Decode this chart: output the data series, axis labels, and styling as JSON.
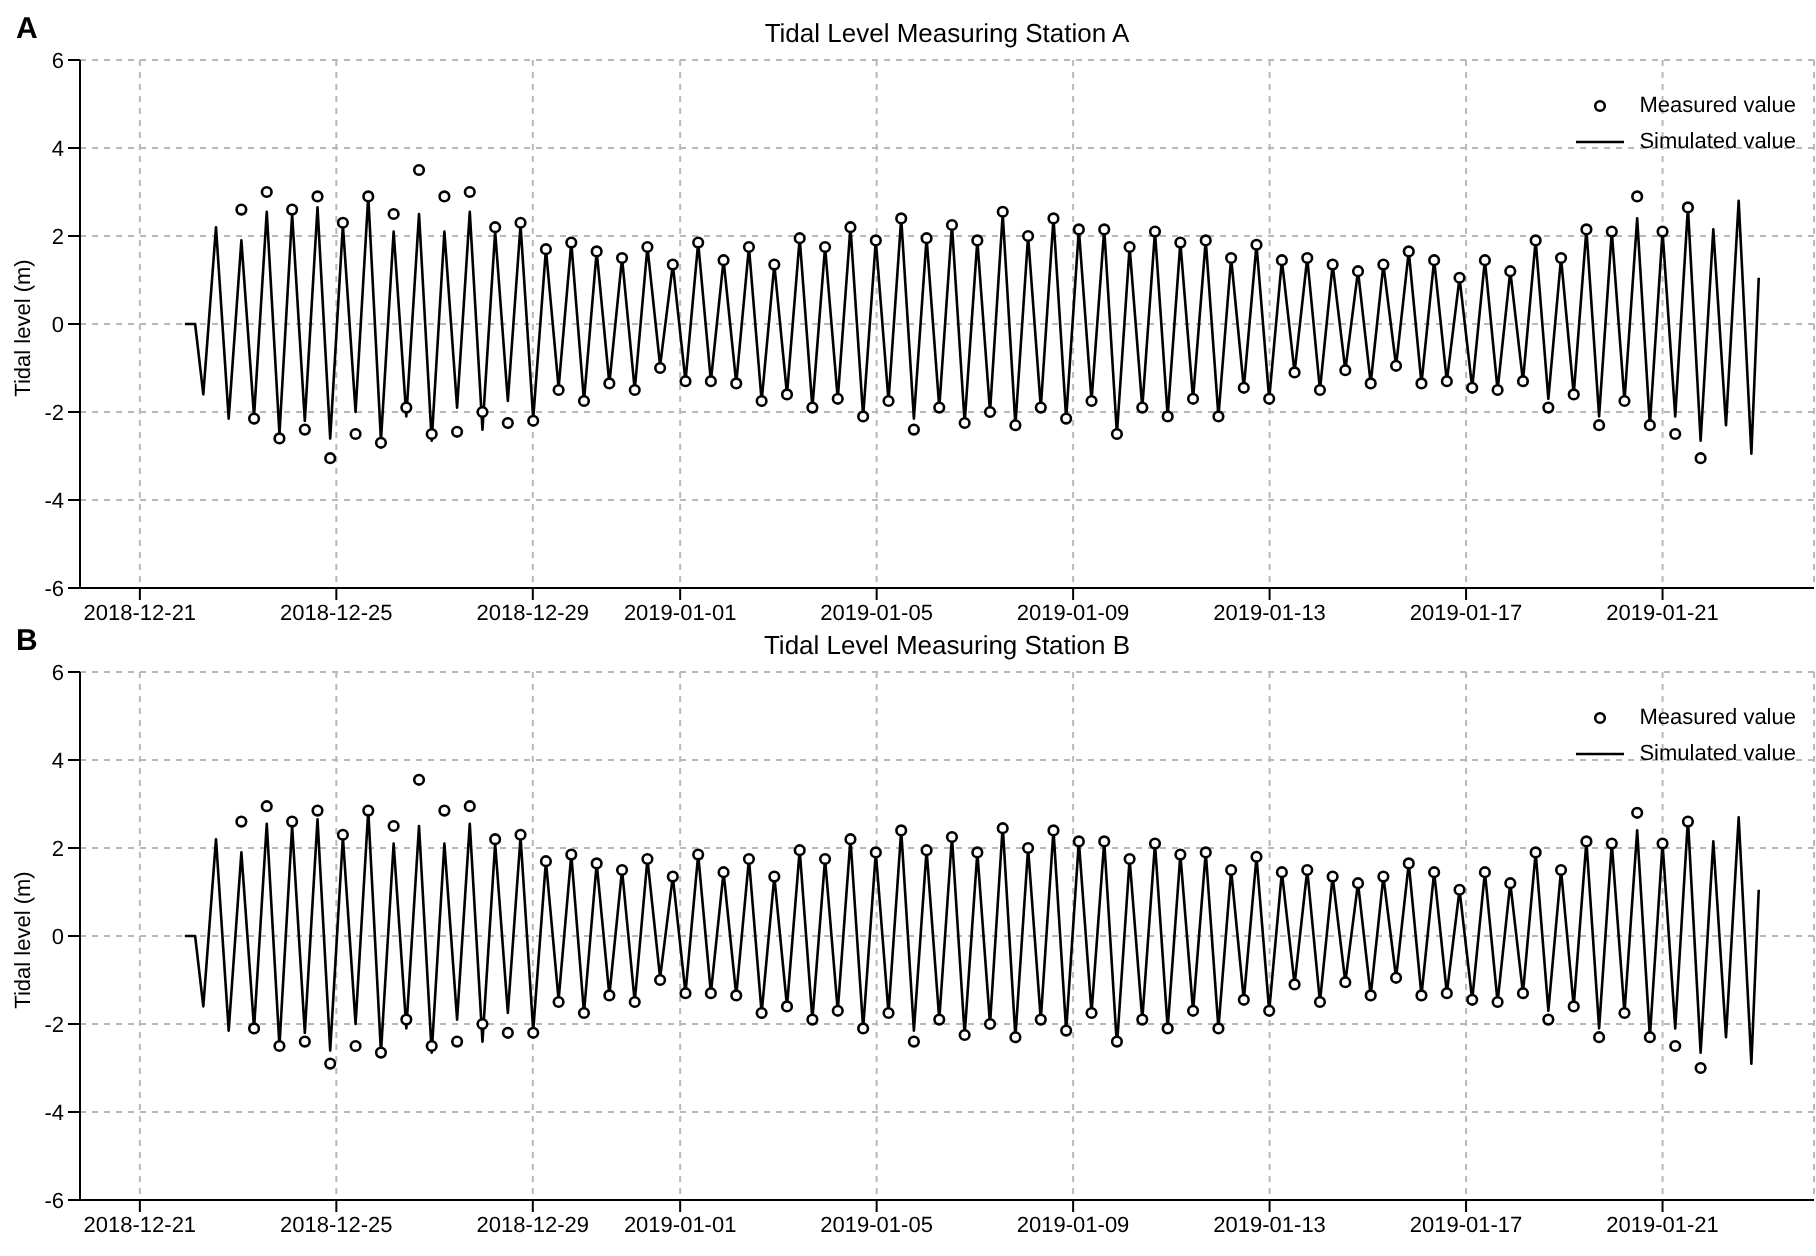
{
  "chart_data": [
    {
      "type": "line",
      "title": "Tidal Level Measuring Station A",
      "annotations": [
        "A"
      ],
      "ylabel": "Tidal level (m)",
      "xlim": [
        "2018-12-19T18:45",
        "2019-01-24T02:00"
      ],
      "xticks": [
        "2018-12-21",
        "2018-12-25",
        "2018-12-29",
        "2019-01-01",
        "2019-01-05",
        "2019-01-09",
        "2019-01-13",
        "2019-01-17",
        "2019-01-21"
      ],
      "ylim": [
        -6,
        6
      ],
      "yticks": [
        -6,
        -4,
        -2,
        0,
        2,
        4,
        6
      ],
      "grid": true,
      "legend": "top right",
      "x": [
        "2018-12-21T22:00",
        "2018-12-22T03:00",
        "2018-12-22T07:00",
        "2018-12-22T13:12",
        "2018-12-22T19:24",
        "2018-12-23T01:36",
        "2018-12-23T07:48",
        "2018-12-23T14:00",
        "2018-12-23T20:12",
        "2018-12-24T02:24",
        "2018-12-24T08:36",
        "2018-12-24T14:48",
        "2018-12-24T21:00",
        "2018-12-25T03:12",
        "2018-12-25T09:24",
        "2018-12-25T15:36",
        "2018-12-25T21:48",
        "2018-12-26T04:00",
        "2018-12-26T10:12",
        "2018-12-26T16:24",
        "2018-12-26T22:36",
        "2018-12-27T04:48",
        "2018-12-27T11:00",
        "2018-12-27T17:12",
        "2018-12-27T23:24",
        "2018-12-28T05:36",
        "2018-12-28T11:48",
        "2018-12-28T18:00",
        "2018-12-29T00:12",
        "2018-12-29T06:24",
        "2018-12-29T12:36",
        "2018-12-29T18:48",
        "2018-12-30T01:00",
        "2018-12-30T07:12",
        "2018-12-30T13:24",
        "2018-12-30T19:36",
        "2018-12-31T01:48",
        "2018-12-31T08:00",
        "2018-12-31T14:12",
        "2018-12-31T20:24",
        "2019-01-01T02:36",
        "2019-01-01T08:48",
        "2019-01-01T15:00",
        "2019-01-01T21:12",
        "2019-01-02T03:24",
        "2019-01-02T09:36",
        "2019-01-02T15:48",
        "2019-01-02T22:00",
        "2019-01-03T04:12",
        "2019-01-03T10:24",
        "2019-01-03T16:36",
        "2019-01-03T22:48",
        "2019-01-04T05:00",
        "2019-01-04T11:12",
        "2019-01-04T17:24",
        "2019-01-04T23:36",
        "2019-01-05T05:48",
        "2019-01-05T12:00",
        "2019-01-05T18:12",
        "2019-01-06T00:24",
        "2019-01-06T06:36",
        "2019-01-06T12:48",
        "2019-01-06T19:00",
        "2019-01-07T01:12",
        "2019-01-07T07:24",
        "2019-01-07T13:36",
        "2019-01-07T19:48",
        "2019-01-08T02:00",
        "2019-01-08T08:12",
        "2019-01-08T14:24",
        "2019-01-08T20:36",
        "2019-01-09T02:48",
        "2019-01-09T09:00",
        "2019-01-09T15:12",
        "2019-01-09T21:24",
        "2019-01-10T03:36",
        "2019-01-10T09:48",
        "2019-01-10T16:00",
        "2019-01-10T22:12",
        "2019-01-11T04:24",
        "2019-01-11T10:36",
        "2019-01-11T16:48",
        "2019-01-11T23:00",
        "2019-01-12T05:12",
        "2019-01-12T11:24",
        "2019-01-12T17:36",
        "2019-01-12T23:48",
        "2019-01-13T06:00",
        "2019-01-13T12:12",
        "2019-01-13T18:24",
        "2019-01-14T00:36",
        "2019-01-14T06:48",
        "2019-01-14T13:00",
        "2019-01-14T19:12",
        "2019-01-15T01:24",
        "2019-01-15T07:36",
        "2019-01-15T13:48",
        "2019-01-15T20:00",
        "2019-01-16T02:12",
        "2019-01-16T08:24",
        "2019-01-16T14:36",
        "2019-01-16T20:48",
        "2019-01-17T03:00",
        "2019-01-17T09:12",
        "2019-01-17T15:24",
        "2019-01-17T21:36",
        "2019-01-18T03:48",
        "2019-01-18T10:00",
        "2019-01-18T16:12",
        "2019-01-18T22:24",
        "2019-01-19T04:36",
        "2019-01-19T10:48",
        "2019-01-19T17:00",
        "2019-01-19T23:12",
        "2019-01-20T05:24",
        "2019-01-20T11:36",
        "2019-01-20T17:48",
        "2019-01-21T00:00",
        "2019-01-21T06:12",
        "2019-01-21T12:24",
        "2019-01-21T18:36",
        "2019-01-22T00:48",
        "2019-01-22T07:00",
        "2019-01-22T13:12",
        "2019-01-22T19:24",
        "2019-01-22T23:00"
      ],
      "series": [
        {
          "name": "Measured value",
          "type": "scatter",
          "marker": "circle",
          "color": "#000000",
          "values": [
            null,
            null,
            null,
            null,
            null,
            2.6,
            -2.15,
            3.0,
            -2.6,
            2.6,
            -2.4,
            2.9,
            -3.05,
            2.3,
            -2.5,
            2.9,
            -2.7,
            2.5,
            -1.9,
            3.5,
            -2.5,
            2.9,
            -2.45,
            3.0,
            -2.0,
            2.2,
            -2.25,
            2.3,
            -2.2,
            1.7,
            -1.5,
            1.85,
            -1.75,
            1.65,
            -1.35,
            1.5,
            -1.5,
            1.75,
            -1.0,
            1.35,
            -1.3,
            1.85,
            -1.3,
            1.45,
            -1.35,
            1.75,
            -1.75,
            1.35,
            -1.6,
            1.95,
            -1.9,
            1.75,
            -1.7,
            2.2,
            -2.1,
            1.9,
            -1.75,
            2.4,
            -2.4,
            1.95,
            -1.9,
            2.25,
            -2.25,
            1.9,
            -2.0,
            2.55,
            -2.3,
            2.0,
            -1.9,
            2.4,
            -2.15,
            2.15,
            -1.75,
            2.15,
            -2.5,
            1.75,
            -1.9,
            2.1,
            -2.1,
            1.85,
            -1.7,
            1.9,
            -2.1,
            1.5,
            -1.45,
            1.8,
            -1.7,
            1.45,
            -1.1,
            1.5,
            -1.5,
            1.35,
            -1.05,
            1.2,
            -1.35,
            1.35,
            -0.95,
            1.65,
            -1.35,
            1.45,
            -1.3,
            1.05,
            -1.45,
            1.45,
            -1.5,
            1.2,
            -1.3,
            1.9,
            -1.9,
            1.5,
            -1.6,
            2.15,
            -2.3,
            2.1,
            -1.75,
            2.9,
            -2.3,
            2.1,
            -2.5,
            2.65,
            -3.05,
            null,
            null,
            null,
            null,
            null
          ]
        },
        {
          "name": "Simulated value",
          "type": "line",
          "line_style": "solid",
          "color": "#000000",
          "values": [
            0,
            0,
            -1.6,
            2.2,
            -2.15,
            1.9,
            -2.1,
            2.55,
            -2.5,
            2.5,
            -2.2,
            2.65,
            -2.6,
            2.25,
            -2.0,
            2.9,
            -2.65,
            2.1,
            -2.1,
            2.5,
            -2.65,
            2.1,
            -1.9,
            2.55,
            -2.4,
            2.1,
            -1.75,
            2.25,
            -2.15,
            1.7,
            -1.45,
            1.85,
            -1.75,
            1.65,
            -1.35,
            1.5,
            -1.5,
            1.75,
            -0.95,
            1.35,
            -1.3,
            1.85,
            -1.3,
            1.45,
            -1.35,
            1.75,
            -1.75,
            1.35,
            -1.6,
            1.95,
            -1.9,
            1.75,
            -1.7,
            2.2,
            -2.1,
            1.9,
            -1.75,
            2.4,
            -2.15,
            1.95,
            -1.9,
            2.25,
            -2.25,
            1.9,
            -2.0,
            2.5,
            -2.3,
            2.0,
            -1.9,
            2.4,
            -2.15,
            2.15,
            -1.75,
            2.15,
            -2.5,
            1.75,
            -1.9,
            2.1,
            -2.1,
            1.85,
            -1.7,
            1.9,
            -2.1,
            1.5,
            -1.45,
            1.8,
            -1.7,
            1.45,
            -1.1,
            1.5,
            -1.5,
            1.35,
            -1.05,
            1.2,
            -1.35,
            1.35,
            -0.95,
            1.65,
            -1.35,
            1.45,
            -1.3,
            1.05,
            -1.45,
            1.45,
            -1.5,
            1.2,
            -1.3,
            1.9,
            -1.7,
            1.5,
            -1.6,
            2.15,
            -2.1,
            2.1,
            -1.75,
            2.4,
            -2.3,
            2.1,
            -2.1,
            2.65,
            -2.65,
            2.15,
            -2.3,
            2.8,
            -2.95,
            1.05
          ]
        }
      ]
    },
    {
      "type": "line",
      "title": "Tidal Level Measuring Station B",
      "annotations": [
        "B"
      ],
      "ylabel": "Tidal level (m)",
      "xlim": [
        "2018-12-19T18:45",
        "2019-01-24T02:00"
      ],
      "xticks": [
        "2018-12-21",
        "2018-12-25",
        "2018-12-29",
        "2019-01-01",
        "2019-01-05",
        "2019-01-09",
        "2019-01-13",
        "2019-01-17",
        "2019-01-21"
      ],
      "ylim": [
        -6,
        6
      ],
      "yticks": [
        -6,
        -4,
        -2,
        0,
        2,
        4,
        6
      ],
      "grid": true,
      "legend": "top right",
      "x": [
        "2018-12-21T22:00",
        "2018-12-22T03:00",
        "2018-12-22T07:00",
        "2018-12-22T13:12",
        "2018-12-22T19:24",
        "2018-12-23T01:36",
        "2018-12-23T07:48",
        "2018-12-23T14:00",
        "2018-12-23T20:12",
        "2018-12-24T02:24",
        "2018-12-24T08:36",
        "2018-12-24T14:48",
        "2018-12-24T21:00",
        "2018-12-25T03:12",
        "2018-12-25T09:24",
        "2018-12-25T15:36",
        "2018-12-25T21:48",
        "2018-12-26T04:00",
        "2018-12-26T10:12",
        "2018-12-26T16:24",
        "2018-12-26T22:36",
        "2018-12-27T04:48",
        "2018-12-27T11:00",
        "2018-12-27T17:12",
        "2018-12-27T23:24",
        "2018-12-28T05:36",
        "2018-12-28T11:48",
        "2018-12-28T18:00",
        "2018-12-29T00:12",
        "2018-12-29T06:24",
        "2018-12-29T12:36",
        "2018-12-29T18:48",
        "2018-12-30T01:00",
        "2018-12-30T07:12",
        "2018-12-30T13:24",
        "2018-12-30T19:36",
        "2018-12-31T01:48",
        "2018-12-31T08:00",
        "2018-12-31T14:12",
        "2018-12-31T20:24",
        "2019-01-01T02:36",
        "2019-01-01T08:48",
        "2019-01-01T15:00",
        "2019-01-01T21:12",
        "2019-01-02T03:24",
        "2019-01-02T09:36",
        "2019-01-02T15:48",
        "2019-01-02T22:00",
        "2019-01-03T04:12",
        "2019-01-03T10:24",
        "2019-01-03T16:36",
        "2019-01-03T22:48",
        "2019-01-04T05:00",
        "2019-01-04T11:12",
        "2019-01-04T17:24",
        "2019-01-04T23:36",
        "2019-01-05T05:48",
        "2019-01-05T12:00",
        "2019-01-05T18:12",
        "2019-01-06T00:24",
        "2019-01-06T06:36",
        "2019-01-06T12:48",
        "2019-01-06T19:00",
        "2019-01-07T01:12",
        "2019-01-07T07:24",
        "2019-01-07T13:36",
        "2019-01-07T19:48",
        "2019-01-08T02:00",
        "2019-01-08T08:12",
        "2019-01-08T14:24",
        "2019-01-08T20:36",
        "2019-01-09T02:48",
        "2019-01-09T09:00",
        "2019-01-09T15:12",
        "2019-01-09T21:24",
        "2019-01-10T03:36",
        "2019-01-10T09:48",
        "2019-01-10T16:00",
        "2019-01-10T22:12",
        "2019-01-11T04:24",
        "2019-01-11T10:36",
        "2019-01-11T16:48",
        "2019-01-11T23:00",
        "2019-01-12T05:12",
        "2019-01-12T11:24",
        "2019-01-12T17:36",
        "2019-01-12T23:48",
        "2019-01-13T06:00",
        "2019-01-13T12:12",
        "2019-01-13T18:24",
        "2019-01-14T00:36",
        "2019-01-14T06:48",
        "2019-01-14T13:00",
        "2019-01-14T19:12",
        "2019-01-15T01:24",
        "2019-01-15T07:36",
        "2019-01-15T13:48",
        "2019-01-15T20:00",
        "2019-01-16T02:12",
        "2019-01-16T08:24",
        "2019-01-16T14:36",
        "2019-01-16T20:48",
        "2019-01-17T03:00",
        "2019-01-17T09:12",
        "2019-01-17T15:24",
        "2019-01-17T21:36",
        "2019-01-18T03:48",
        "2019-01-18T10:00",
        "2019-01-18T16:12",
        "2019-01-18T22:24",
        "2019-01-19T04:36",
        "2019-01-19T10:48",
        "2019-01-19T17:00",
        "2019-01-19T23:12",
        "2019-01-20T05:24",
        "2019-01-20T11:36",
        "2019-01-20T17:48",
        "2019-01-21T00:00",
        "2019-01-21T06:12",
        "2019-01-21T12:24",
        "2019-01-21T18:36",
        "2019-01-22T00:48",
        "2019-01-22T07:00",
        "2019-01-22T13:12",
        "2019-01-22T19:24",
        "2019-01-22T23:00"
      ],
      "series": [
        {
          "name": "Measured value",
          "type": "scatter",
          "marker": "circle",
          "color": "#000000",
          "values": [
            null,
            null,
            null,
            null,
            null,
            2.6,
            -2.1,
            2.95,
            -2.5,
            2.6,
            -2.4,
            2.85,
            -2.9,
            2.3,
            -2.5,
            2.85,
            -2.65,
            2.5,
            -1.9,
            3.55,
            -2.5,
            2.85,
            -2.4,
            2.95,
            -2.0,
            2.2,
            -2.2,
            2.3,
            -2.2,
            1.7,
            -1.5,
            1.85,
            -1.75,
            1.65,
            -1.35,
            1.5,
            -1.5,
            1.75,
            -1.0,
            1.35,
            -1.3,
            1.85,
            -1.3,
            1.45,
            -1.35,
            1.75,
            -1.75,
            1.35,
            -1.6,
            1.95,
            -1.9,
            1.75,
            -1.7,
            2.2,
            -2.1,
            1.9,
            -1.75,
            2.4,
            -2.4,
            1.95,
            -1.9,
            2.25,
            -2.25,
            1.9,
            -2.0,
            2.45,
            -2.3,
            2.0,
            -1.9,
            2.4,
            -2.15,
            2.15,
            -1.75,
            2.15,
            -2.4,
            1.75,
            -1.9,
            2.1,
            -2.1,
            1.85,
            -1.7,
            1.9,
            -2.1,
            1.5,
            -1.45,
            1.8,
            -1.7,
            1.45,
            -1.1,
            1.5,
            -1.5,
            1.35,
            -1.05,
            1.2,
            -1.35,
            1.35,
            -0.95,
            1.65,
            -1.35,
            1.45,
            -1.3,
            1.05,
            -1.45,
            1.45,
            -1.5,
            1.2,
            -1.3,
            1.9,
            -1.9,
            1.5,
            -1.6,
            2.15,
            -2.3,
            2.1,
            -1.75,
            2.8,
            -2.3,
            2.1,
            -2.5,
            2.6,
            -3.0,
            null,
            null,
            null,
            null,
            null
          ]
        },
        {
          "name": "Simulated value",
          "type": "line",
          "line_style": "solid",
          "color": "#000000",
          "values": [
            0,
            0,
            -1.6,
            2.2,
            -2.15,
            1.9,
            -2.1,
            2.55,
            -2.5,
            2.5,
            -2.2,
            2.65,
            -2.6,
            2.25,
            -2.0,
            2.85,
            -2.65,
            2.1,
            -2.1,
            2.5,
            -2.65,
            2.1,
            -1.9,
            2.55,
            -2.4,
            2.1,
            -1.75,
            2.25,
            -2.15,
            1.7,
            -1.45,
            1.85,
            -1.75,
            1.65,
            -1.35,
            1.5,
            -1.5,
            1.75,
            -0.95,
            1.35,
            -1.3,
            1.85,
            -1.3,
            1.45,
            -1.35,
            1.75,
            -1.75,
            1.35,
            -1.6,
            1.95,
            -1.9,
            1.75,
            -1.7,
            2.2,
            -2.1,
            1.9,
            -1.75,
            2.4,
            -2.15,
            1.95,
            -1.9,
            2.25,
            -2.25,
            1.9,
            -2.0,
            2.5,
            -2.3,
            2.0,
            -1.9,
            2.4,
            -2.15,
            2.15,
            -1.75,
            2.15,
            -2.5,
            1.75,
            -1.9,
            2.1,
            -2.1,
            1.85,
            -1.7,
            1.9,
            -2.1,
            1.5,
            -1.45,
            1.8,
            -1.7,
            1.45,
            -1.1,
            1.5,
            -1.5,
            1.35,
            -1.05,
            1.2,
            -1.35,
            1.35,
            -0.95,
            1.65,
            -1.35,
            1.45,
            -1.3,
            1.05,
            -1.45,
            1.45,
            -1.5,
            1.2,
            -1.3,
            1.9,
            -1.7,
            1.5,
            -1.6,
            2.15,
            -2.1,
            2.1,
            -1.75,
            2.4,
            -2.3,
            2.1,
            -2.1,
            2.65,
            -2.65,
            2.15,
            -2.3,
            2.7,
            -2.9,
            1.05
          ]
        }
      ]
    }
  ]
}
